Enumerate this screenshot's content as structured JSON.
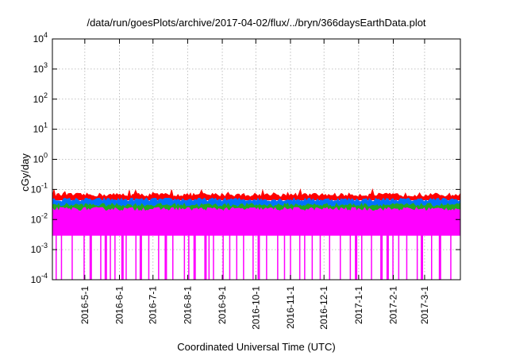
{
  "chart_data": {
    "type": "area",
    "title": "/data/run/goesPlots/archive/2017-04-02/flux/../bryn/366daysEarthData.plot",
    "xlabel": "Coordinated Universal Time (UTC)",
    "ylabel": "cGy/day",
    "y_scale": "log",
    "ylim": [
      0.0001,
      10000
    ],
    "xlim": [
      "2016-04-02",
      "2017-04-02"
    ],
    "grid": true,
    "y_ticks": [
      {
        "value": 0.0001,
        "base": "10",
        "exp": "-4"
      },
      {
        "value": 0.001,
        "base": "10",
        "exp": "-3"
      },
      {
        "value": 0.01,
        "base": "10",
        "exp": "-2"
      },
      {
        "value": 0.1,
        "base": "10",
        "exp": "-1"
      },
      {
        "value": 1,
        "base": "10",
        "exp": "0"
      },
      {
        "value": 10,
        "base": "10",
        "exp": "1"
      },
      {
        "value": 100,
        "base": "10",
        "exp": "2"
      },
      {
        "value": 1000,
        "base": "10",
        "exp": "3"
      },
      {
        "value": 10000,
        "base": "10",
        "exp": "4"
      }
    ],
    "x_ticks": [
      {
        "date": "2016-05-01",
        "label": "2016-5-1"
      },
      {
        "date": "2016-06-01",
        "label": "2016-6-1"
      },
      {
        "date": "2016-07-01",
        "label": "2016-7-1"
      },
      {
        "date": "2016-08-01",
        "label": "2016-8-1"
      },
      {
        "date": "2016-09-01",
        "label": "2016-9-1"
      },
      {
        "date": "2016-10-01",
        "label": "2016-10-1"
      },
      {
        "date": "2016-11-01",
        "label": "2016-11-1"
      },
      {
        "date": "2016-12-01",
        "label": "2016-12-1"
      },
      {
        "date": "2017-01-01",
        "label": "2017-1-1"
      },
      {
        "date": "2017-02-01",
        "label": "2017-2-1"
      },
      {
        "date": "2017-03-01",
        "label": "2017-3-1"
      }
    ],
    "series": [
      {
        "color": "#ff0000",
        "approx_level": 0.065,
        "approx_min": 0.045
      },
      {
        "color": "#0072ff",
        "approx_level": 0.045,
        "approx_min": 0.025
      },
      {
        "color": "#22aa22",
        "approx_level": 0.03,
        "approx_min": 0.02
      },
      {
        "color": "#ff00ff",
        "approx_level": 0.022,
        "approx_min": 0.003
      }
    ]
  }
}
